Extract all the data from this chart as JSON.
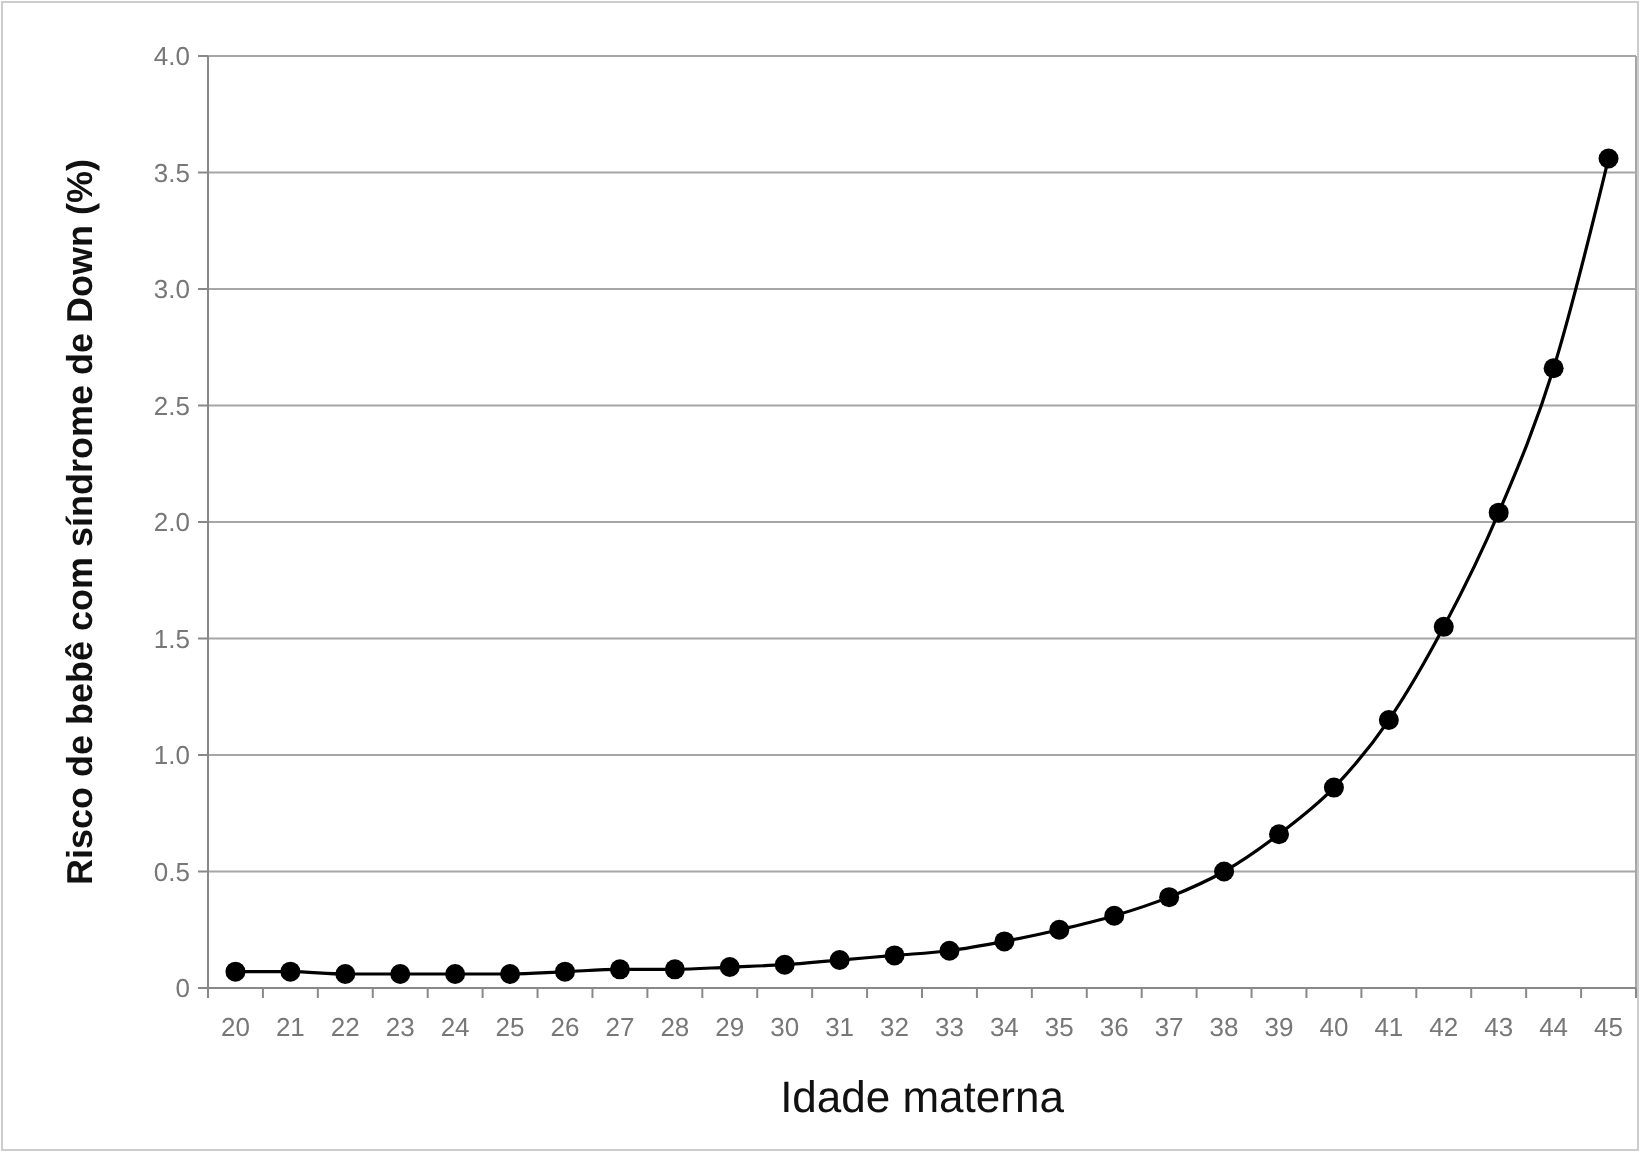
{
  "chart_data": {
    "type": "line",
    "xlabel": "Idade materna",
    "ylabel": "Risco de bebê com síndrome de Down (%)",
    "categories": [
      "20",
      "21",
      "22",
      "23",
      "24",
      "25",
      "26",
      "27",
      "28",
      "29",
      "30",
      "31",
      "32",
      "33",
      "34",
      "35",
      "36",
      "37",
      "38",
      "39",
      "40",
      "41",
      "42",
      "43",
      "44",
      "45"
    ],
    "series": [
      {
        "color": "#000000",
        "values": [
          0.07,
          0.07,
          0.06,
          0.06,
          0.06,
          0.06,
          0.07,
          0.08,
          0.08,
          0.09,
          0.1,
          0.12,
          0.14,
          0.16,
          0.2,
          0.25,
          0.31,
          0.39,
          0.5,
          0.66,
          0.86,
          1.15,
          1.55,
          2.04,
          2.66,
          3.56
        ]
      }
    ],
    "ylim": [
      0,
      4
    ],
    "yticks": [
      0,
      0.5,
      {
        "value": 1,
        "label": "1.0"
      },
      1.5,
      {
        "value": 2,
        "label": "2.0"
      },
      2.5,
      {
        "value": 3,
        "label": "3.0"
      },
      3.5,
      {
        "value": 4,
        "label": "4.0"
      }
    ],
    "grid": "y",
    "marker": "circle",
    "line_style": "solid"
  }
}
